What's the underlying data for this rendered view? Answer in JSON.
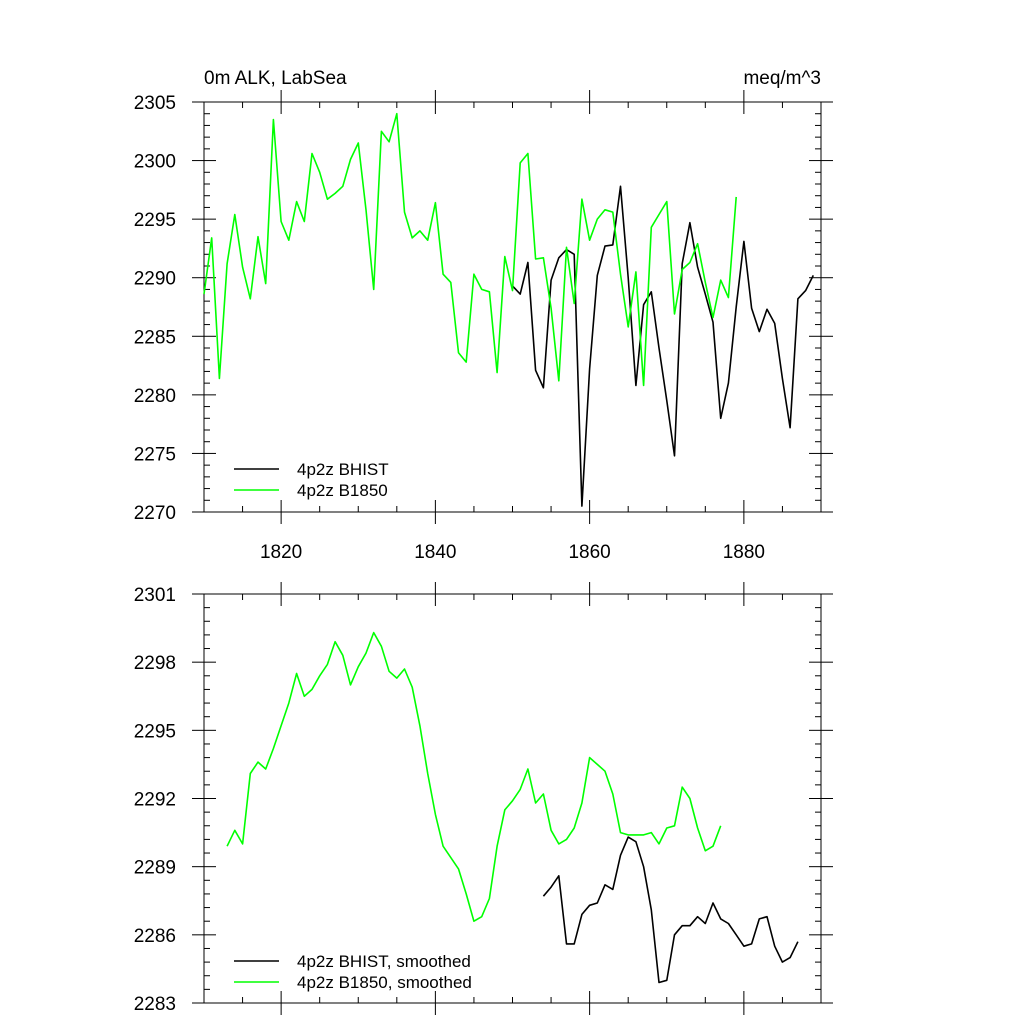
{
  "chart_data": [
    {
      "type": "line",
      "title": "0m ALK, LabSea",
      "units": "meq/m^3",
      "xlim": [
        1810,
        1890
      ],
      "ylim": [
        2270,
        2305
      ],
      "xticks": [
        1820,
        1840,
        1860,
        1880
      ],
      "yticks": [
        2270,
        2275,
        2280,
        2285,
        2290,
        2295,
        2300,
        2305
      ],
      "x_tick_labels_shown": true,
      "grid": false,
      "legend_position": "bottom-left",
      "series": [
        {
          "name": "4p2z BHIST",
          "color": "#000000",
          "x": [
            1850,
            1851,
            1852,
            1853,
            1854,
            1855,
            1856,
            1857,
            1858,
            1859,
            1860,
            1861,
            1862,
            1863,
            1864,
            1865,
            1866,
            1867,
            1868,
            1869,
            1870,
            1871,
            1872,
            1873,
            1874,
            1875,
            1876,
            1877,
            1878,
            1879,
            1880,
            1881,
            1882,
            1883,
            1884,
            1885,
            1886,
            1887,
            1888,
            1889
          ],
          "values": [
            2289.3,
            2288.6,
            2291.3,
            2282.1,
            2280.6,
            2289.8,
            2291.7,
            2292.4,
            2292.0,
            2270.5,
            2282.2,
            2290.2,
            2292.7,
            2292.8,
            2297.8,
            2290.0,
            2280.8,
            2287.7,
            2288.8,
            2284.0,
            2279.5,
            2274.8,
            2291.2,
            2294.7,
            2290.9,
            2288.6,
            2286.2,
            2278.0,
            2281.0,
            2287.5,
            2293.1,
            2287.4,
            2285.4,
            2287.3,
            2286.1,
            2281.4,
            2277.2,
            2288.2,
            2288.9,
            2290.2
          ]
        },
        {
          "name": "4p2z B1850",
          "color": "#00ff00",
          "x": [
            1810,
            1811,
            1812,
            1813,
            1814,
            1815,
            1816,
            1817,
            1818,
            1819,
            1820,
            1821,
            1822,
            1823,
            1824,
            1825,
            1826,
            1827,
            1828,
            1829,
            1830,
            1831,
            1832,
            1833,
            1834,
            1835,
            1836,
            1837,
            1838,
            1839,
            1840,
            1841,
            1842,
            1843,
            1844,
            1845,
            1846,
            1847,
            1848,
            1849,
            1850,
            1851,
            1852,
            1853,
            1854,
            1855,
            1856,
            1857,
            1858,
            1859,
            1860,
            1861,
            1862,
            1863,
            1864,
            1865,
            1866,
            1867,
            1868,
            1869,
            1870,
            1871,
            1872,
            1873,
            1874,
            1875,
            1876,
            1877,
            1878,
            1879
          ],
          "values": [
            2288.6,
            2293.4,
            2281.4,
            2291.2,
            2295.4,
            2290.9,
            2288.2,
            2293.5,
            2289.5,
            2303.5,
            2294.8,
            2293.2,
            2296.5,
            2294.8,
            2300.6,
            2299.0,
            2296.7,
            2297.2,
            2297.8,
            2300.1,
            2301.5,
            2295.8,
            2289.0,
            2302.5,
            2301.6,
            2304.0,
            2295.6,
            2293.4,
            2294.0,
            2293.2,
            2296.4,
            2290.3,
            2289.6,
            2283.6,
            2282.8,
            2290.3,
            2289.0,
            2288.8,
            2281.9,
            2291.8,
            2288.9,
            2299.8,
            2300.6,
            2291.6,
            2291.7,
            2287.4,
            2281.2,
            2292.6,
            2287.8,
            2296.7,
            2293.2,
            2295.0,
            2295.8,
            2295.6,
            2290.3,
            2285.8,
            2290.5,
            2280.8,
            2294.3,
            2295.4,
            2296.5,
            2286.9,
            2290.7,
            2291.3,
            2292.9,
            2289.6,
            2286.6,
            2289.8,
            2288.3,
            2296.9
          ]
        }
      ]
    },
    {
      "type": "line",
      "xlim": [
        1810,
        1890
      ],
      "ylim": [
        2283,
        2301
      ],
      "xticks": [
        1820,
        1840,
        1860,
        1880
      ],
      "yticks": [
        2283,
        2286,
        2289,
        2292,
        2295,
        2298,
        2301
      ],
      "x_tick_labels_shown": false,
      "grid": false,
      "legend_position": "bottom-left",
      "series": [
        {
          "name": "4p2z BHIST, smoothed",
          "color": "#000000",
          "x": [
            1854,
            1855,
            1856,
            1857,
            1858,
            1859,
            1860,
            1861,
            1862,
            1863,
            1864,
            1865,
            1866,
            1867,
            1868,
            1869,
            1870,
            1871,
            1872,
            1873,
            1874,
            1875,
            1876,
            1877,
            1878,
            1879,
            1880,
            1881,
            1882,
            1883,
            1884,
            1885,
            1886,
            1887
          ],
          "values": [
            2287.7,
            2288.1,
            2288.6,
            2285.6,
            2285.6,
            2286.9,
            2287.3,
            2287.4,
            2288.2,
            2288.0,
            2289.5,
            2290.3,
            2290.1,
            2289.0,
            2287.1,
            2283.9,
            2284.0,
            2286.0,
            2286.4,
            2286.4,
            2286.8,
            2286.5,
            2287.4,
            2286.7,
            2286.5,
            2286.0,
            2285.5,
            2285.6,
            2286.7,
            2286.8,
            2285.5,
            2284.8,
            2285.0,
            2285.7
          ]
        },
        {
          "name": "4p2z B1850, smoothed",
          "color": "#00ff00",
          "x": [
            1813,
            1814,
            1815,
            1816,
            1817,
            1818,
            1819,
            1820,
            1821,
            1822,
            1823,
            1824,
            1825,
            1826,
            1827,
            1828,
            1829,
            1830,
            1831,
            1832,
            1833,
            1834,
            1835,
            1836,
            1837,
            1838,
            1839,
            1840,
            1841,
            1842,
            1843,
            1844,
            1845,
            1846,
            1847,
            1848,
            1849,
            1850,
            1851,
            1852,
            1853,
            1854,
            1855,
            1856,
            1857,
            1858,
            1859,
            1860,
            1861,
            1862,
            1863,
            1864,
            1865,
            1866,
            1867,
            1868,
            1869,
            1870,
            1871,
            1872,
            1873,
            1874,
            1875,
            1876,
            1877
          ],
          "values": [
            2289.9,
            2290.6,
            2290.0,
            2293.1,
            2293.6,
            2293.3,
            2294.2,
            2295.2,
            2296.2,
            2297.5,
            2296.5,
            2296.8,
            2297.4,
            2297.9,
            2298.9,
            2298.3,
            2297.0,
            2297.8,
            2298.4,
            2299.3,
            2298.7,
            2297.6,
            2297.3,
            2297.7,
            2296.9,
            2295.2,
            2293.1,
            2291.3,
            2289.9,
            2289.4,
            2288.9,
            2287.8,
            2286.6,
            2286.8,
            2287.6,
            2289.9,
            2291.5,
            2291.9,
            2292.4,
            2293.3,
            2291.8,
            2292.2,
            2290.6,
            2290.0,
            2290.2,
            2290.7,
            2291.8,
            2293.8,
            2293.5,
            2293.2,
            2292.2,
            2290.5,
            2290.4,
            2290.4,
            2290.4,
            2290.5,
            2290.0,
            2290.7,
            2290.8,
            2292.5,
            2292.0,
            2290.7,
            2289.7,
            2289.9,
            2290.8
          ]
        }
      ]
    }
  ]
}
